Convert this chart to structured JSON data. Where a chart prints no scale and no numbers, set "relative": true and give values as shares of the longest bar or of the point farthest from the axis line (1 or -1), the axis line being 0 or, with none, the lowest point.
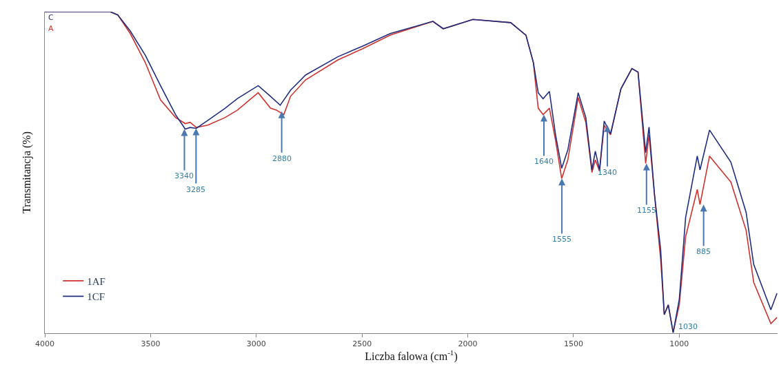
{
  "chart_data": {
    "type": "line",
    "xlabel": "Liczba falowa (cm$^{-1}$)",
    "ylabel": "Transmitancja (%)",
    "relative": true,
    "xlim": [
      4000,
      535
    ],
    "xticks": [
      4000,
      3500,
      3000,
      2500,
      2000,
      1500,
      1000
    ],
    "legend": "bottom left",
    "marker": "none",
    "line_style": "solid",
    "series": [
      {
        "name": "1AF",
        "color": "#d0312d",
        "x": [
          4000,
          3691,
          3655,
          3596,
          3525,
          3453,
          3382,
          3336,
          3313,
          3284,
          3229,
          3147,
          3089,
          2991,
          2933,
          2905,
          2870,
          2838,
          2767,
          2614,
          2497,
          2367,
          2165,
          2116,
          1976,
          1797,
          1725,
          1690,
          1667,
          1644,
          1614,
          1585,
          1556,
          1527,
          1478,
          1442,
          1413,
          1397,
          1377,
          1355,
          1325,
          1276,
          1224,
          1195,
          1159,
          1143,
          1117,
          1088,
          1071,
          1052,
          1029,
          1000,
          970,
          915,
          902,
          857,
          756,
          684,
          648,
          567,
          538
        ],
        "values": [
          1.0,
          1.0,
          0.99,
          0.932,
          0.842,
          0.726,
          0.671,
          0.652,
          0.656,
          0.64,
          0.647,
          0.671,
          0.694,
          0.748,
          0.7,
          0.694,
          0.68,
          0.737,
          0.788,
          0.85,
          0.885,
          0.927,
          0.97,
          0.947,
          0.976,
          0.966,
          0.927,
          0.842,
          0.7,
          0.68,
          0.7,
          0.6,
          0.481,
          0.539,
          0.733,
          0.656,
          0.5,
          0.539,
          0.504,
          0.647,
          0.617,
          0.76,
          0.823,
          0.812,
          0.528,
          0.617,
          0.43,
          0.229,
          0.058,
          0.088,
          0.002,
          0.088,
          0.3,
          0.447,
          0.4,
          0.551,
          0.47,
          0.32,
          0.158,
          0.03,
          0.049
        ]
      },
      {
        "name": "1CF",
        "color": "#1f2d80",
        "x": [
          4000,
          3691,
          3655,
          3596,
          3525,
          3453,
          3382,
          3336,
          3313,
          3284,
          3229,
          3147,
          3089,
          2991,
          2933,
          2887,
          2838,
          2767,
          2614,
          2497,
          2367,
          2165,
          2116,
          1976,
          1797,
          1725,
          1690,
          1667,
          1644,
          1614,
          1585,
          1556,
          1527,
          1478,
          1442,
          1413,
          1397,
          1377,
          1355,
          1325,
          1276,
          1224,
          1195,
          1159,
          1143,
          1117,
          1088,
          1071,
          1052,
          1029,
          1000,
          970,
          915,
          902,
          857,
          756,
          684,
          648,
          567,
          538
        ],
        "values": [
          1.0,
          1.0,
          0.99,
          0.94,
          0.865,
          0.77,
          0.68,
          0.635,
          0.64,
          0.637,
          0.662,
          0.7,
          0.73,
          0.77,
          0.737,
          0.709,
          0.756,
          0.803,
          0.86,
          0.893,
          0.932,
          0.97,
          0.947,
          0.976,
          0.966,
          0.927,
          0.842,
          0.748,
          0.729,
          0.752,
          0.617,
          0.513,
          0.57,
          0.748,
          0.671,
          0.508,
          0.566,
          0.508,
          0.66,
          0.62,
          0.76,
          0.823,
          0.812,
          0.562,
          0.641,
          0.43,
          0.259,
          0.058,
          0.088,
          0.002,
          0.105,
          0.36,
          0.551,
          0.508,
          0.632,
          0.532,
          0.376,
          0.214,
          0.073,
          0.124
        ]
      }
    ],
    "annotations": [
      "C",
      "A",
      {
        "text": "3340",
        "x": 3340,
        "y": 0.635
      },
      {
        "text": "3285",
        "x": 3285,
        "y": 0.637
      },
      {
        "text": "2880",
        "x": 2880,
        "y": 0.69
      },
      {
        "text": "1640",
        "x": 1640,
        "y": 0.68
      },
      {
        "text": "1555",
        "x": 1555,
        "y": 0.481
      },
      {
        "text": "1340",
        "x": 1340,
        "y": 0.647
      },
      {
        "text": "1155",
        "x": 1155,
        "y": 0.528
      },
      {
        "text": "885",
        "x": 885,
        "y": 0.4
      },
      {
        "text": "1030",
        "x": 1029,
        "y": 0.002
      }
    ]
  }
}
